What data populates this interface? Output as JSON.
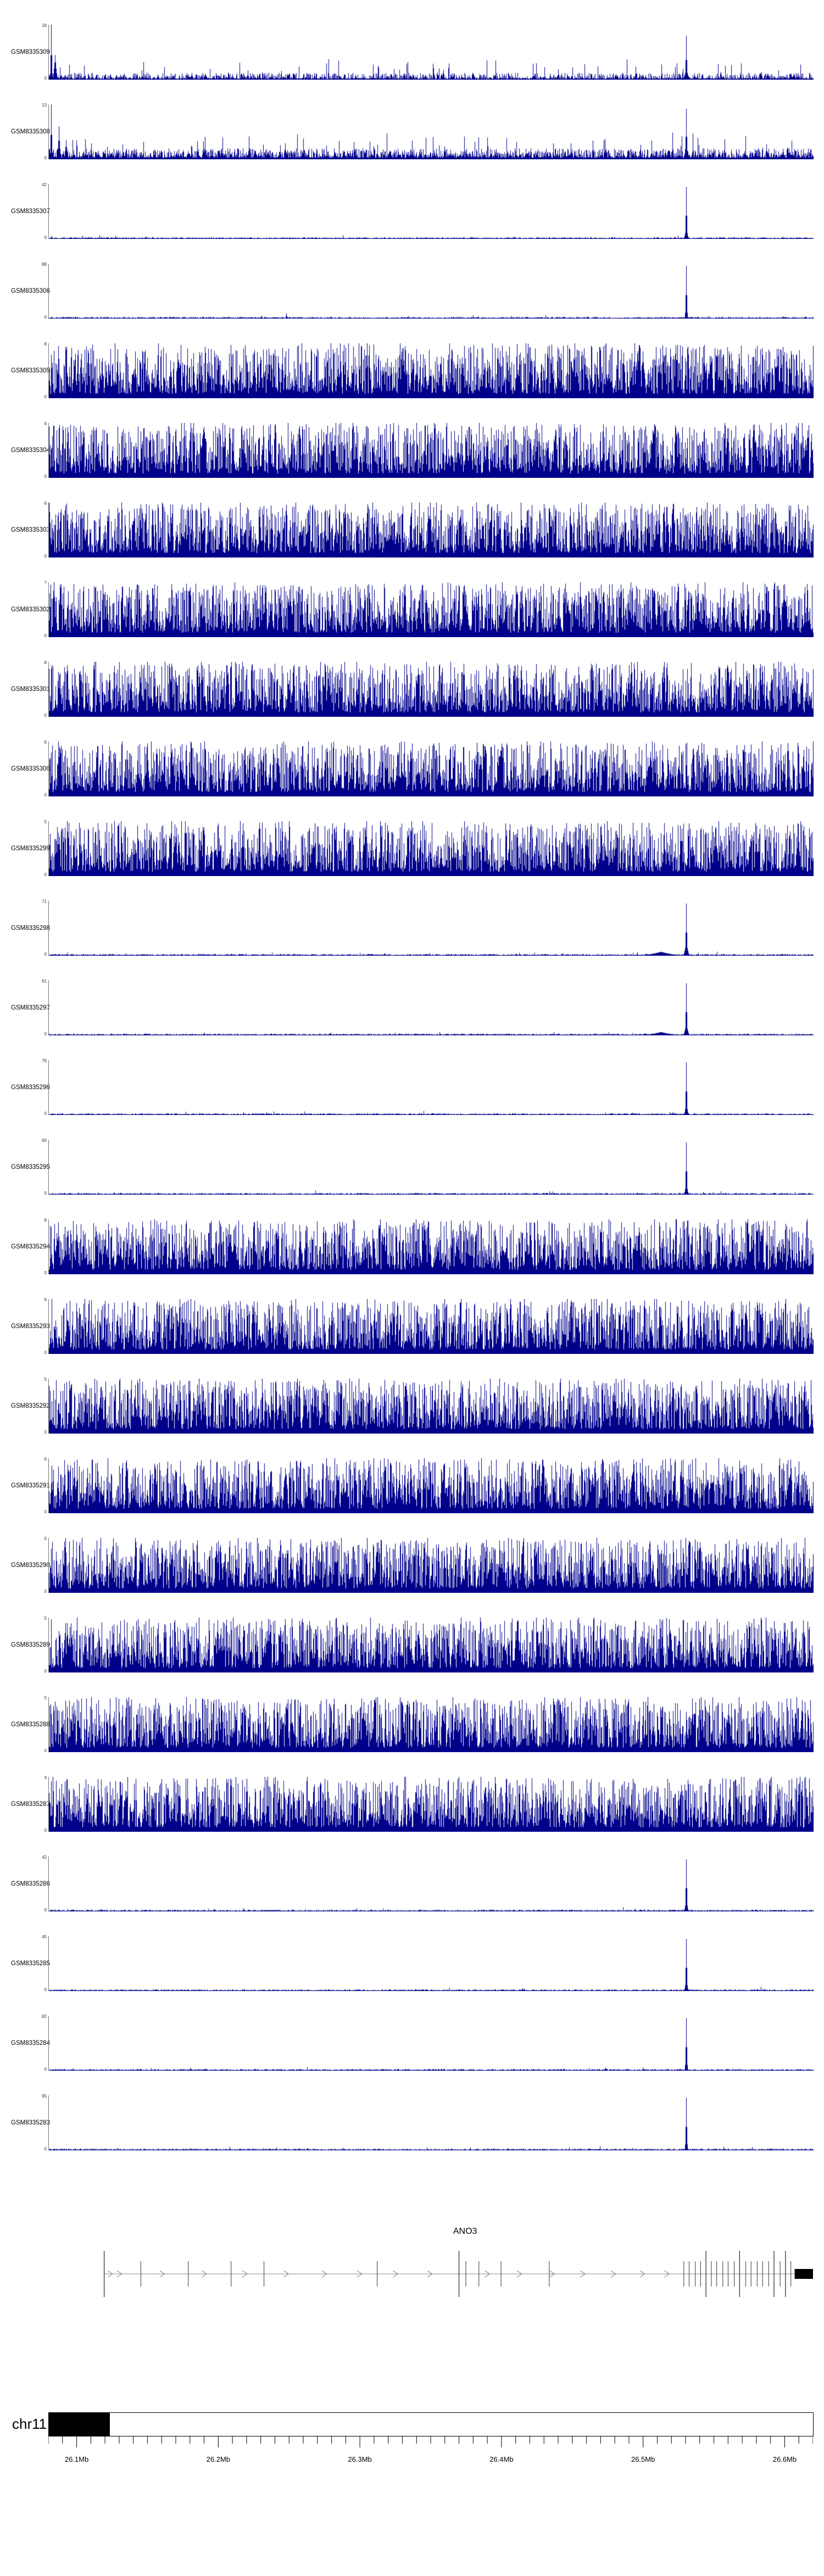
{
  "signal_color": "#00008B",
  "render_kinds": {
    "dense": {
      "base": 0.08,
      "amp": 0.9,
      "pow": 1.35,
      "spike_prob": 0.05,
      "spike_h": 0.5
    },
    "quiet": {
      "base": 0.004,
      "amp": 0.028,
      "pow": 1.2,
      "spike_prob": 0.012,
      "spike_h": 0.05
    },
    "mixed": {
      "base": 0.015,
      "amp": 0.11,
      "pow": 2.2,
      "spike_prob": 0.035,
      "spike_h": 0.3
    },
    "mixed2": {
      "base": 0.03,
      "amp": 0.17,
      "pow": 1.9,
      "spike_prob": 0.05,
      "spike_h": 0.35
    }
  },
  "chart_data": {
    "type": "area",
    "title": "",
    "tracks": [
      {
        "id": "GSM8335309",
        "axis_max": 18,
        "axis_min": 0,
        "kind": "mixed",
        "features": [
          {
            "p": 0.003,
            "h": 1.0,
            "w": 2
          },
          {
            "p": 0.008,
            "h": 0.45,
            "w": 5
          },
          {
            "p": 0.833,
            "h": 0.8,
            "w": 2
          },
          {
            "p": 0.833,
            "h": 0.22,
            "w": 7
          }
        ]
      },
      {
        "id": "GSM8335308",
        "axis_max": 13,
        "axis_min": 0,
        "kind": "mixed2",
        "features": [
          {
            "p": 0.003,
            "h": 1.0,
            "w": 2
          },
          {
            "p": 0.013,
            "h": 0.6,
            "w": 3
          },
          {
            "p": 0.022,
            "h": 0.35,
            "w": 4
          },
          {
            "p": 0.833,
            "h": 0.92,
            "w": 2
          },
          {
            "p": 0.833,
            "h": 0.26,
            "w": 7
          }
        ]
      },
      {
        "id": "GSM8335307",
        "axis_max": 42,
        "axis_min": 0,
        "kind": "quiet",
        "features": [
          {
            "p": 0.833,
            "h": 0.95,
            "w": 2
          },
          {
            "p": 0.833,
            "h": 0.2,
            "w": 5
          }
        ]
      },
      {
        "id": "GSM8335306",
        "axis_max": 88,
        "axis_min": 0,
        "kind": "quiet",
        "features": [
          {
            "p": 0.31,
            "h": 0.1,
            "w": 2
          },
          {
            "p": 0.833,
            "h": 0.96,
            "w": 2
          },
          {
            "p": 0.833,
            "h": 0.18,
            "w": 4
          }
        ]
      },
      {
        "id": "GSM8335305",
        "axis_max": 8,
        "axis_min": 0,
        "kind": "dense",
        "features": []
      },
      {
        "id": "GSM8335304",
        "axis_max": 6,
        "axis_min": 0,
        "kind": "dense",
        "features": []
      },
      {
        "id": "GSM8335303",
        "axis_max": 6,
        "axis_min": 0,
        "kind": "dense",
        "features": []
      },
      {
        "id": "GSM8335302",
        "axis_max": 7,
        "axis_min": 0,
        "kind": "dense",
        "features": []
      },
      {
        "id": "GSM8335301",
        "axis_max": 8,
        "axis_min": 0,
        "kind": "dense",
        "features": []
      },
      {
        "id": "GSM8335300",
        "axis_max": 6,
        "axis_min": 0,
        "kind": "dense",
        "features": []
      },
      {
        "id": "GSM8335299",
        "axis_max": 5,
        "axis_min": 0,
        "kind": "dense",
        "features": []
      },
      {
        "id": "GSM8335298",
        "axis_max": 71,
        "axis_min": 0,
        "kind": "quiet",
        "features": [
          {
            "p": 0.8,
            "h": 0.07,
            "w": 50
          },
          {
            "p": 0.833,
            "h": 0.95,
            "w": 2
          },
          {
            "p": 0.833,
            "h": 0.28,
            "w": 6
          }
        ]
      },
      {
        "id": "GSM8335297",
        "axis_max": 61,
        "axis_min": 0,
        "kind": "quiet",
        "features": [
          {
            "p": 0.8,
            "h": 0.06,
            "w": 45
          },
          {
            "p": 0.833,
            "h": 0.95,
            "w": 2
          },
          {
            "p": 0.833,
            "h": 0.24,
            "w": 6
          }
        ]
      },
      {
        "id": "GSM8335296",
        "axis_max": 79,
        "axis_min": 0,
        "kind": "quiet",
        "features": [
          {
            "p": 0.833,
            "h": 0.96,
            "w": 2
          },
          {
            "p": 0.833,
            "h": 0.2,
            "w": 5
          }
        ]
      },
      {
        "id": "GSM8335295",
        "axis_max": 60,
        "axis_min": 0,
        "kind": "quiet",
        "features": [
          {
            "p": 0.833,
            "h": 0.95,
            "w": 2
          },
          {
            "p": 0.833,
            "h": 0.2,
            "w": 5
          }
        ]
      },
      {
        "id": "GSM8335294",
        "axis_max": 8,
        "axis_min": 0,
        "kind": "dense",
        "features": []
      },
      {
        "id": "GSM8335293",
        "axis_max": 6,
        "axis_min": 0,
        "kind": "dense",
        "features": []
      },
      {
        "id": "GSM8335292",
        "axis_max": 5,
        "axis_min": 0,
        "kind": "dense",
        "features": []
      },
      {
        "id": "GSM8335291",
        "axis_max": 6,
        "axis_min": 0,
        "kind": "dense",
        "features": []
      },
      {
        "id": "GSM8335290",
        "axis_max": 5,
        "axis_min": 0,
        "kind": "dense",
        "features": []
      },
      {
        "id": "GSM8335289",
        "axis_max": 5,
        "axis_min": 0,
        "kind": "dense",
        "features": []
      },
      {
        "id": "GSM8335288",
        "axis_max": 5,
        "axis_min": 0,
        "kind": "dense",
        "features": []
      },
      {
        "id": "GSM8335287",
        "axis_max": 4,
        "axis_min": 0,
        "kind": "dense",
        "features": []
      },
      {
        "id": "GSM8335286",
        "axis_max": 42,
        "axis_min": 0,
        "kind": "quiet",
        "features": [
          {
            "p": 0.833,
            "h": 0.95,
            "w": 2
          },
          {
            "p": 0.833,
            "h": 0.18,
            "w": 5
          }
        ]
      },
      {
        "id": "GSM8335285",
        "axis_max": 45,
        "axis_min": 0,
        "kind": "quiet",
        "features": [
          {
            "p": 0.833,
            "h": 0.95,
            "w": 2
          },
          {
            "p": 0.833,
            "h": 0.18,
            "w": 5
          }
        ]
      },
      {
        "id": "GSM8335284",
        "axis_max": 82,
        "axis_min": 0,
        "kind": "quiet",
        "features": [
          {
            "p": 0.833,
            "h": 0.96,
            "w": 2
          },
          {
            "p": 0.833,
            "h": 0.16,
            "w": 4
          }
        ]
      },
      {
        "id": "GSM8335283",
        "axis_max": 95,
        "axis_min": 0,
        "kind": "quiet",
        "features": [
          {
            "p": 0.833,
            "h": 0.96,
            "w": 2
          },
          {
            "p": 0.833,
            "h": 0.16,
            "w": 4
          }
        ]
      }
    ],
    "gene_track": {
      "name": "ANO3",
      "label_x": 0.545,
      "arrow_direction": "right",
      "span": {
        "start": 0.073,
        "end": 1.0
      },
      "exons": [
        {
          "x": 0.073,
          "h": "t"
        },
        {
          "x": 0.121,
          "h": "s"
        },
        {
          "x": 0.183,
          "h": "s"
        },
        {
          "x": 0.239,
          "h": "s"
        },
        {
          "x": 0.282,
          "h": "s"
        },
        {
          "x": 0.43,
          "h": "s"
        },
        {
          "x": 0.537,
          "h": "t"
        },
        {
          "x": 0.546,
          "h": "s"
        },
        {
          "x": 0.563,
          "h": "s"
        },
        {
          "x": 0.592,
          "h": "s"
        },
        {
          "x": 0.655,
          "h": "s"
        },
        {
          "x": 0.831,
          "h": "s"
        },
        {
          "x": 0.838,
          "h": "s"
        },
        {
          "x": 0.846,
          "h": "s"
        },
        {
          "x": 0.853,
          "h": "s"
        },
        {
          "x": 0.86,
          "h": "t"
        },
        {
          "x": 0.867,
          "h": "s"
        },
        {
          "x": 0.874,
          "h": "s"
        },
        {
          "x": 0.882,
          "h": "s"
        },
        {
          "x": 0.889,
          "h": "s"
        },
        {
          "x": 0.897,
          "h": "s"
        },
        {
          "x": 0.904,
          "h": "t"
        },
        {
          "x": 0.912,
          "h": "s"
        },
        {
          "x": 0.919,
          "h": "s"
        },
        {
          "x": 0.927,
          "h": "s"
        },
        {
          "x": 0.934,
          "h": "s"
        },
        {
          "x": 0.942,
          "h": "s"
        },
        {
          "x": 0.949,
          "h": "t"
        },
        {
          "x": 0.957,
          "h": "s"
        },
        {
          "x": 0.964,
          "h": "t"
        },
        {
          "x": 0.971,
          "h": "s"
        }
      ],
      "arrows": [
        0.082,
        0.094,
        0.15,
        0.205,
        0.258,
        0.312,
        0.362,
        0.408,
        0.455,
        0.5,
        0.575,
        0.617,
        0.66,
        0.7,
        0.74,
        0.778,
        0.81
      ],
      "thick_box": {
        "start": 0.976,
        "end": 1.0
      }
    },
    "ruler": {
      "chrom": "chr11",
      "start_mb": 26.08,
      "end_mb": 26.62,
      "minor_interval_mb": 0.01,
      "band_black_end_frac": 0.08,
      "major_ticks": [
        {
          "mb": 26.1,
          "label": "26.1Mb"
        },
        {
          "mb": 26.2,
          "label": "26.2Mb"
        },
        {
          "mb": 26.3,
          "label": "26.3Mb"
        },
        {
          "mb": 26.4,
          "label": "26.4Mb"
        },
        {
          "mb": 26.5,
          "label": "26.5Mb"
        },
        {
          "mb": 26.6,
          "label": "26.6Mb"
        }
      ]
    }
  }
}
